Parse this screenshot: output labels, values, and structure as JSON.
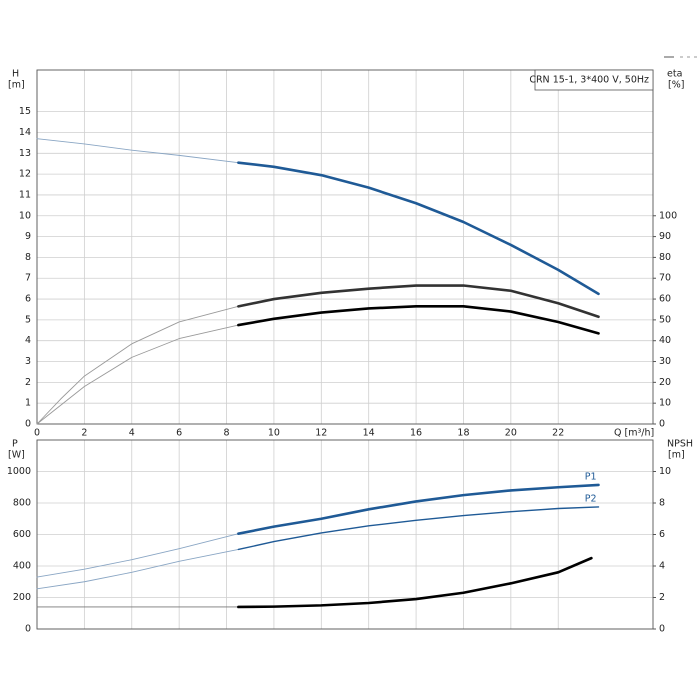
{
  "chart_data": [
    {
      "type": "line",
      "title": "CRN 15-1, 3*400 V, 50Hz",
      "x_label": "Q [m³/h]",
      "y_label": "H",
      "y_unit": "[m]",
      "y2_label": "eta",
      "y2_unit": "[%]",
      "xlim": [
        0,
        26
      ],
      "xticks": [
        0,
        2,
        4,
        6,
        8,
        10,
        12,
        14,
        16,
        18,
        20,
        22
      ],
      "xtick_labels": true,
      "ylim": [
        0,
        17
      ],
      "yticks": [
        0,
        1,
        2,
        3,
        4,
        5,
        6,
        7,
        8,
        9,
        10,
        11,
        12,
        13,
        14,
        15
      ],
      "y2lim": [
        0,
        170
      ],
      "y2ticks": [
        0,
        10,
        20,
        30,
        40,
        50,
        60,
        70,
        80,
        90,
        100
      ],
      "grid": true,
      "series": [
        {
          "color": "#8aa6c4",
          "style": "thin",
          "x": [
            0,
            2,
            4,
            6,
            8.5
          ],
          "values": [
            13.7,
            13.45,
            13.15,
            12.9,
            12.55
          ]
        },
        {
          "color": "#1f5a96",
          "style": "thick",
          "x": [
            8.5,
            10,
            12,
            14,
            16,
            18,
            20,
            22,
            23.7
          ],
          "values": [
            12.55,
            12.35,
            11.95,
            11.35,
            10.6,
            9.7,
            8.6,
            7.4,
            6.25
          ]
        },
        {
          "color": "#9a9a9a",
          "style": "thin",
          "axis": "y2",
          "x": [
            0,
            1,
            2,
            4,
            6,
            8.5
          ],
          "values": [
            0,
            12,
            23,
            38.5,
            49,
            56.5
          ]
        },
        {
          "color": "#333333",
          "style": "thick",
          "axis": "y2",
          "x": [
            8.5,
            10,
            12,
            14,
            16,
            18,
            20,
            22,
            23.7
          ],
          "values": [
            56.5,
            60,
            63,
            65,
            66.5,
            66.5,
            64,
            58,
            51.5
          ]
        },
        {
          "color": "#9a9a9a",
          "style": "thin",
          "axis": "y2",
          "x": [
            0,
            1,
            2,
            4,
            6,
            8.5
          ],
          "values": [
            0,
            9,
            18,
            32,
            41,
            47.5
          ]
        },
        {
          "color": "#000000",
          "style": "thick",
          "axis": "y2",
          "x": [
            8.5,
            10,
            12,
            14,
            16,
            18,
            20,
            22,
            23.7
          ],
          "values": [
            47.5,
            50.5,
            53.5,
            55.5,
            56.5,
            56.5,
            54,
            49,
            43.5
          ]
        }
      ]
    },
    {
      "type": "line",
      "y_label": "P",
      "y_unit": "[W]",
      "y2_label": "NPSH",
      "y2_unit": "[m]",
      "xlim": [
        0,
        26
      ],
      "xticks": [
        0,
        2,
        4,
        6,
        8,
        10,
        12,
        14,
        16,
        18,
        20,
        22
      ],
      "xtick_labels": false,
      "ylim": [
        0,
        1200
      ],
      "yticks": [
        0,
        200,
        400,
        600,
        800,
        1000
      ],
      "y2lim": [
        0,
        12
      ],
      "y2ticks": [
        0,
        2,
        4,
        6,
        8,
        10
      ],
      "grid": true,
      "series": [
        {
          "color": "#8aa6c4",
          "style": "thin",
          "x": [
            0,
            2,
            4,
            6,
            8.5
          ],
          "values": [
            330,
            380,
            440,
            510,
            605
          ]
        },
        {
          "name": "P1",
          "color": "#1f5a96",
          "style": "thick",
          "x": [
            8.5,
            10,
            12,
            14,
            16,
            18,
            20,
            22,
            23.7
          ],
          "values": [
            605,
            650,
            700,
            760,
            810,
            850,
            880,
            900,
            915
          ]
        },
        {
          "color": "#8aa6c4",
          "style": "thin",
          "x": [
            0,
            2,
            4,
            6,
            8.5
          ],
          "values": [
            255,
            300,
            360,
            430,
            505
          ]
        },
        {
          "name": "P2",
          "color": "#1f5a96",
          "style": "medium",
          "x": [
            8.5,
            10,
            12,
            14,
            16,
            18,
            20,
            22,
            23.7
          ],
          "values": [
            505,
            555,
            610,
            655,
            690,
            720,
            745,
            765,
            775
          ]
        },
        {
          "color": "#777777",
          "style": "thin",
          "axis": "y2",
          "x": [
            0,
            4,
            8.5
          ],
          "values": [
            1.4,
            1.4,
            1.4
          ]
        },
        {
          "color": "#000000",
          "style": "thick",
          "axis": "y2",
          "x": [
            8.5,
            10,
            12,
            14,
            16,
            18,
            20,
            22,
            23.4
          ],
          "values": [
            1.4,
            1.42,
            1.5,
            1.65,
            1.9,
            2.3,
            2.9,
            3.6,
            4.5
          ]
        }
      ]
    }
  ]
}
